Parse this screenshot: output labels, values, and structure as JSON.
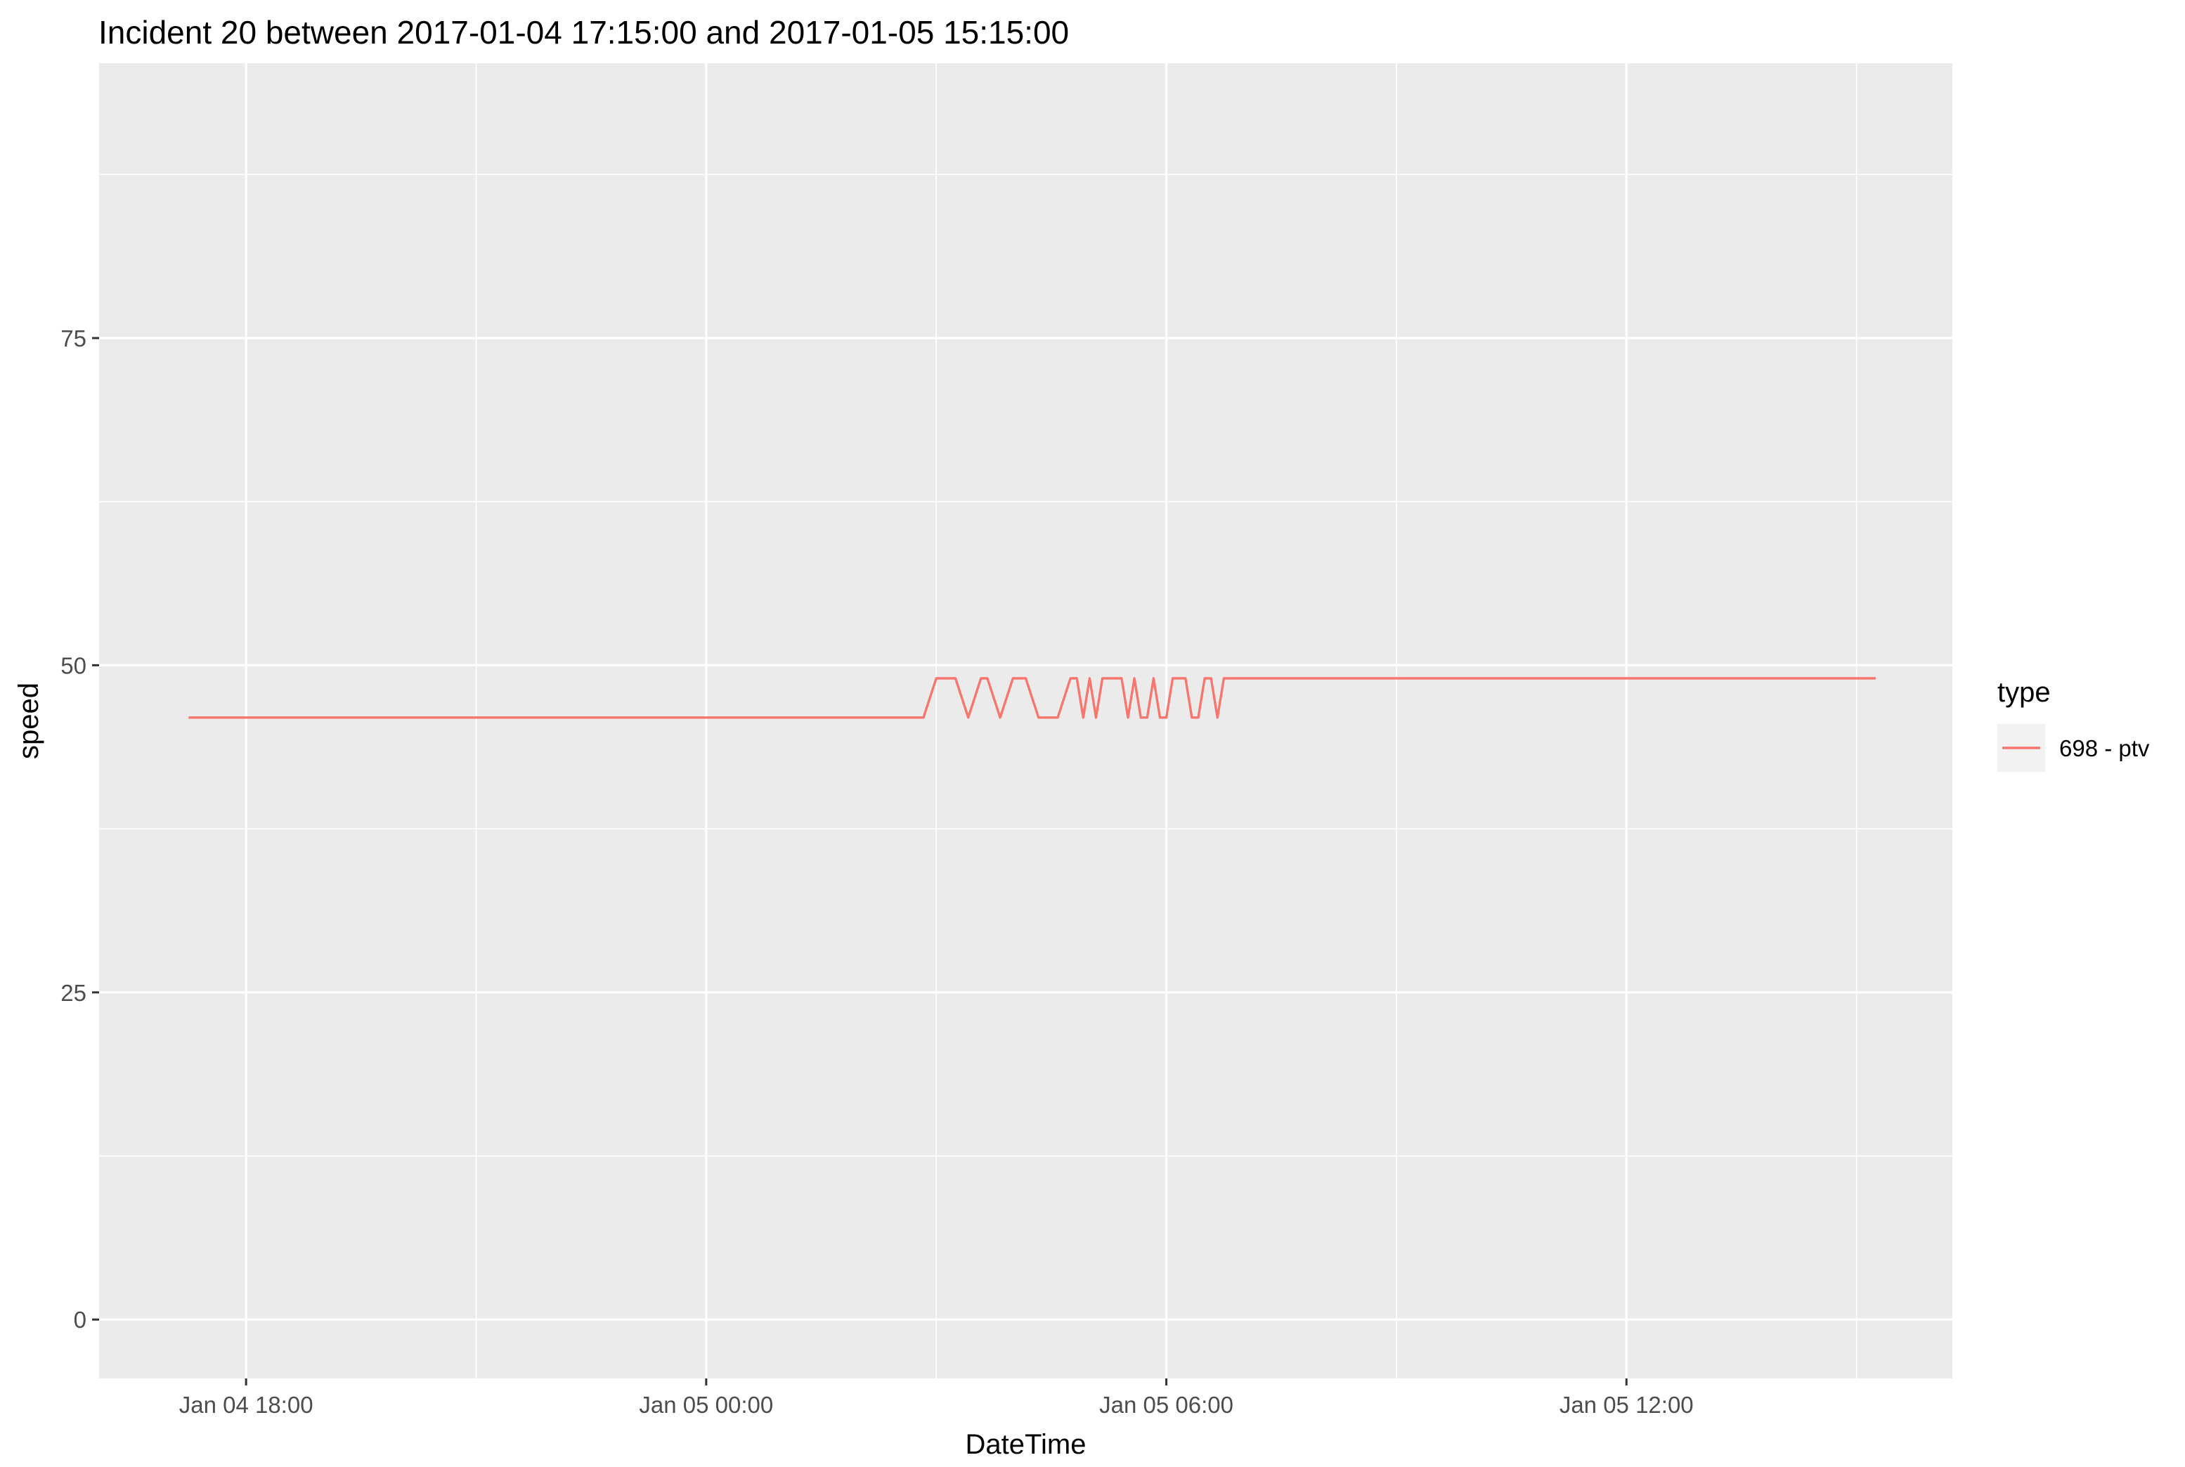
{
  "chart_data": {
    "type": "line",
    "title": "Incident 20 between 2017-01-04 17:15:00 and 2017-01-05 15:15:00",
    "xlabel": "DateTime",
    "ylabel": "speed",
    "x_ticks": [
      {
        "value": "2017-01-04 18:00",
        "label": "Jan 04 18:00"
      },
      {
        "value": "2017-01-05 00:00",
        "label": "Jan 05 00:00"
      },
      {
        "value": "2017-01-05 06:00",
        "label": "Jan 05 06:00"
      },
      {
        "value": "2017-01-05 12:00",
        "label": "Jan 05 12:00"
      }
    ],
    "y_ticks": [
      0,
      25,
      50,
      75
    ],
    "xlim": [
      "2017-01-04 16:05",
      "2017-01-05 16:15"
    ],
    "ylim": [
      -4.5,
      96
    ],
    "grid": true,
    "legend": {
      "title": "type",
      "position": "right"
    },
    "series": [
      {
        "name": "698 - ptv",
        "color": "#F8766D",
        "points": [
          [
            "2017-01-04 17:15",
            46
          ],
          [
            "2017-01-05 02:50",
            46
          ],
          [
            "2017-01-05 03:00",
            49
          ],
          [
            "2017-01-05 03:15",
            49
          ],
          [
            "2017-01-05 03:25",
            46
          ],
          [
            "2017-01-05 03:35",
            49
          ],
          [
            "2017-01-05 03:40",
            49
          ],
          [
            "2017-01-05 03:50",
            46
          ],
          [
            "2017-01-05 04:00",
            49
          ],
          [
            "2017-01-05 04:10",
            49
          ],
          [
            "2017-01-05 04:20",
            46
          ],
          [
            "2017-01-05 04:35",
            46
          ],
          [
            "2017-01-05 04:45",
            49
          ],
          [
            "2017-01-05 04:50",
            49
          ],
          [
            "2017-01-05 04:55",
            46
          ],
          [
            "2017-01-05 05:00",
            49
          ],
          [
            "2017-01-05 05:05",
            46
          ],
          [
            "2017-01-05 05:10",
            49
          ],
          [
            "2017-01-05 05:25",
            49
          ],
          [
            "2017-01-05 05:30",
            46
          ],
          [
            "2017-01-05 05:35",
            49
          ],
          [
            "2017-01-05 05:40",
            46
          ],
          [
            "2017-01-05 05:45",
            46
          ],
          [
            "2017-01-05 05:50",
            49
          ],
          [
            "2017-01-05 05:55",
            46
          ],
          [
            "2017-01-05 06:00",
            46
          ],
          [
            "2017-01-05 06:05",
            49
          ],
          [
            "2017-01-05 06:15",
            49
          ],
          [
            "2017-01-05 06:20",
            46
          ],
          [
            "2017-01-05 06:25",
            46
          ],
          [
            "2017-01-05 06:30",
            49
          ],
          [
            "2017-01-05 06:35",
            49
          ],
          [
            "2017-01-05 06:40",
            46
          ],
          [
            "2017-01-05 06:45",
            49
          ],
          [
            "2017-01-05 15:15",
            49
          ]
        ]
      }
    ]
  }
}
